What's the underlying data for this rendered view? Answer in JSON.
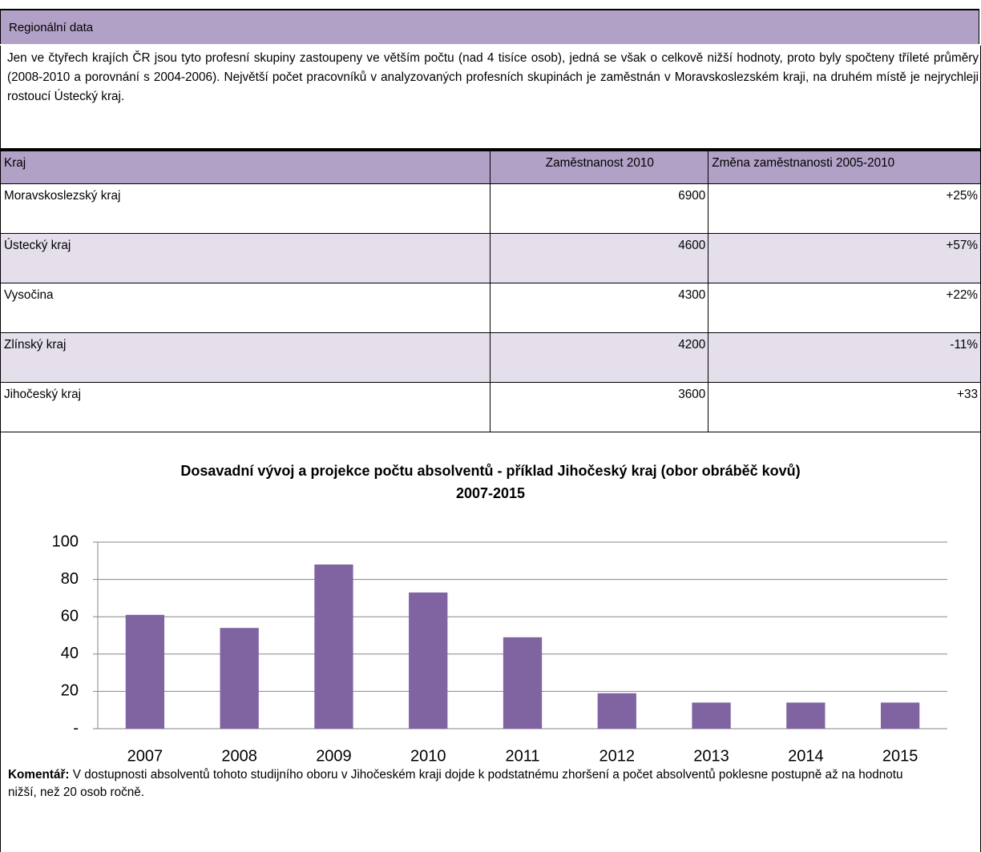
{
  "header": {
    "title": "Regionální data"
  },
  "paragraph": "Jen ve čtyřech krajích ČR jsou tyto profesní skupiny zastoupeny ve větším počtu (nad 4 tisíce osob), jedná se však o celkově nižší hodnoty, proto byly spočteny tříleté průměry (2008-2010 a porovnání s 2004-2006). Největší počet pracovníků v analyzovaných profesních skupinách je zaměstnán v Moravskoslezském kraji, na druhém místě je nejrychleji rostoucí Ústecký kraj.",
  "table": {
    "columns": [
      "Kraj",
      "Zaměstnanost 2010",
      "Změna zaměstnanosti 2005-2010"
    ],
    "rows": [
      [
        "Moravskoslezský kraj",
        "6900",
        "+25%"
      ],
      [
        "Ústecký kraj",
        "4600",
        "+57%"
      ],
      [
        "Vysočina",
        "4300",
        "+22%"
      ],
      [
        "Zlínský kraj",
        "4200",
        "-11%"
      ],
      [
        "Jihočeský kraj",
        "3600",
        "+33"
      ]
    ]
  },
  "chart_data": {
    "type": "bar",
    "title": "Dosavadní vývoj a projekce počtu absolventů - příklad Jihočeský kraj (obor obráběč kovů) 2007-2015",
    "categories": [
      "2007",
      "2008",
      "2009",
      "2010",
      "2011",
      "2012",
      "2013",
      "2014",
      "2015"
    ],
    "values": [
      61,
      54,
      88,
      73,
      49,
      19,
      14,
      14,
      14
    ],
    "color": "#8064a2",
    "ylim": [
      0,
      100
    ],
    "yticks": [
      {
        "value": 0,
        "label": "-"
      },
      20,
      40,
      60,
      80,
      100
    ],
    "grid": true
  },
  "comment": {
    "label": "Komentář:",
    "text": "V dostupnosti absolventů tohoto studijního oboru v Jihočeském kraji dojde k podstatnému zhoršení a počet absolventů poklesne postupně až na hodnotu nižší, než 20 osob ročně."
  }
}
